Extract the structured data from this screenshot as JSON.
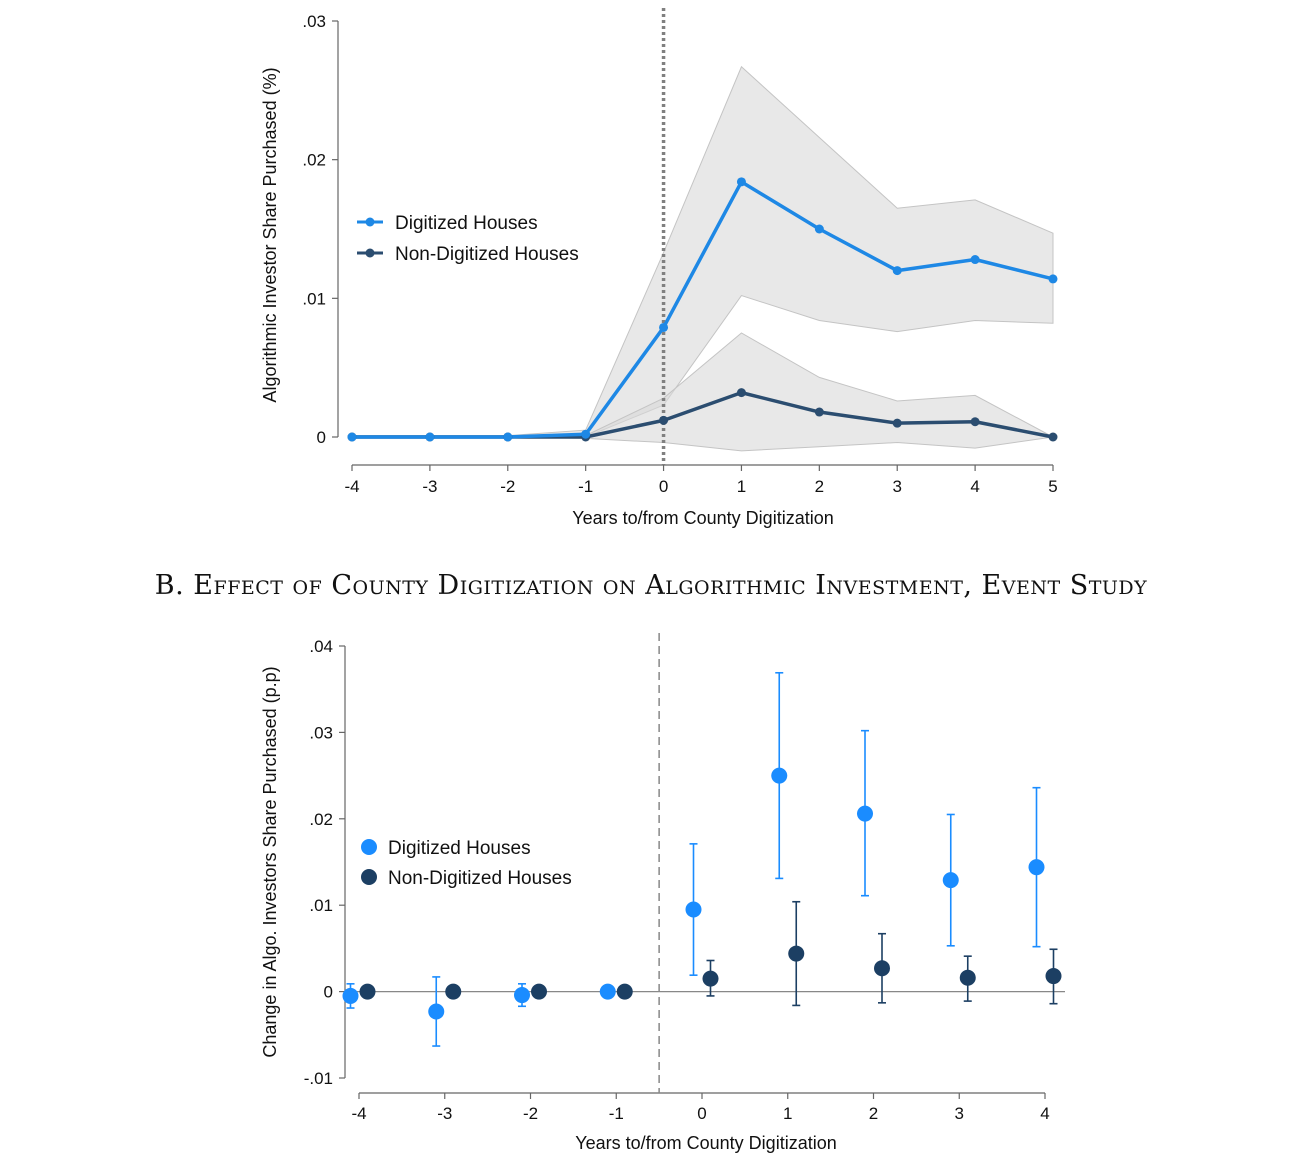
{
  "chart_data": [
    {
      "type": "line",
      "title": "",
      "xlabel": "Years to/from County Digitization",
      "ylabel": "Algorithmic Investor Share Purchased (%)",
      "x": [
        -4,
        -3,
        -2,
        -1,
        0,
        1,
        2,
        3,
        4,
        5
      ],
      "xticks": [
        "-4",
        "-3",
        "-2",
        "-1",
        "0",
        "1",
        "2",
        "3",
        "4",
        "5"
      ],
      "ylim": [
        0,
        0.03
      ],
      "yticks": [
        0,
        0.01,
        0.02,
        0.03
      ],
      "ytick_labels": [
        "0",
        ".01",
        ".02",
        ".03"
      ],
      "event_line_x": 0,
      "series": [
        {
          "name": "Digitized Houses",
          "color": "#1e88e5",
          "values": [
            0,
            0,
            0,
            0.0002,
            0.0079,
            0.0184,
            0.015,
            0.012,
            0.0128,
            0.0114
          ],
          "ci_low": [
            0,
            0,
            0,
            0,
            0.0023,
            0.0102,
            0.0084,
            0.0076,
            0.0084,
            0.0082
          ],
          "ci_high": [
            0.0001,
            0.0001,
            0.0001,
            0.0005,
            0.0133,
            0.0267,
            0.0216,
            0.0165,
            0.0171,
            0.0147
          ]
        },
        {
          "name": "Non-Digitized Houses",
          "color": "#2b4d70",
          "values": [
            0,
            0,
            0,
            0,
            0.0012,
            0.0032,
            0.0018,
            0.001,
            0.0011,
            0
          ],
          "ci_low": [
            0,
            0,
            0,
            -0.0001,
            -0.0004,
            -0.001,
            -0.0007,
            -0.0004,
            -0.0008,
            0
          ],
          "ci_high": [
            0.0001,
            0.0001,
            0.0001,
            0.0001,
            0.0028,
            0.0075,
            0.0043,
            0.0026,
            0.003,
            0
          ]
        }
      ],
      "legend": "center-left"
    },
    {
      "type": "scatter",
      "title": "B. Effect of County Digitization on Algorithmic Investment, Event Study",
      "xlabel": "Years to/from County Digitization",
      "ylabel": "Change in Algo. Investors Share Purchased (p.p)",
      "x": [
        -4,
        -3,
        -2,
        -1,
        0,
        1,
        2,
        3,
        4
      ],
      "xticks": [
        "-4",
        "-3",
        "-2",
        "-1",
        "0",
        "1",
        "2",
        "3",
        "4"
      ],
      "ylim": [
        -0.01,
        0.04
      ],
      "yticks": [
        -0.01,
        0,
        0.01,
        0.02,
        0.03,
        0.04
      ],
      "ytick_labels": [
        "-.01",
        "0",
        ".01",
        ".02",
        ".03",
        ".04"
      ],
      "event_line_x": -0.5,
      "series": [
        {
          "name": "Digitized Houses",
          "color": "#1a8cff",
          "values": [
            -0.0005,
            -0.0023,
            -0.0004,
            0,
            0.0095,
            0.025,
            0.0206,
            0.0129,
            0.0144
          ],
          "ci_low": [
            -0.0019,
            -0.0063,
            -0.0017,
            0,
            0.0019,
            0.0131,
            0.0111,
            0.0053,
            0.0052
          ],
          "ci_high": [
            0.0009,
            0.0017,
            0.0009,
            0,
            0.0171,
            0.0369,
            0.0302,
            0.0205,
            0.0236
          ]
        },
        {
          "name": "Non-Digitized Houses",
          "color": "#1c3f63",
          "values": [
            0,
            0,
            0,
            0,
            0.0015,
            0.0044,
            0.0027,
            0.0016,
            0.0018
          ],
          "ci_low": [
            0,
            0,
            0,
            0,
            -0.0005,
            -0.0016,
            -0.0013,
            -0.0011,
            -0.0014
          ],
          "ci_high": [
            0,
            0,
            0,
            0,
            0.0036,
            0.0104,
            0.0067,
            0.0041,
            0.0049
          ]
        }
      ],
      "legend": "center-left"
    }
  ]
}
